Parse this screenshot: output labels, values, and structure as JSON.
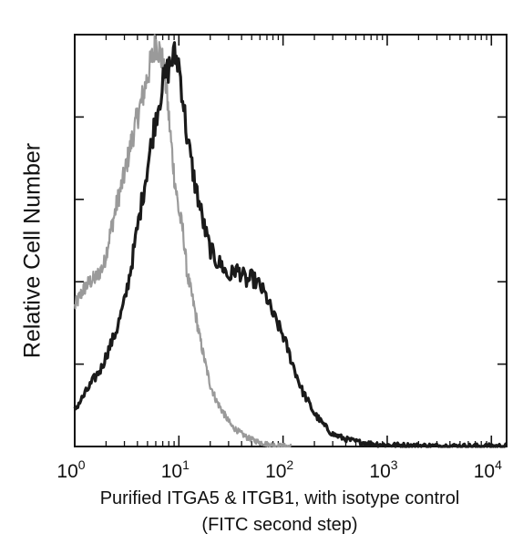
{
  "chart_data": {
    "type": "histogram",
    "x_scale": "log",
    "xlim": [
      1,
      14000
    ],
    "ylim": [
      0,
      100
    ],
    "grid": false,
    "legend": "none",
    "xlabel": [
      "Purified ITGA5 & ITGB1, with isotype control",
      "(FITC second step)"
    ],
    "ylabel": "Relative Cell Number",
    "x_ticks": [
      {
        "value": 1,
        "base": "10",
        "exp": "0"
      },
      {
        "value": 10,
        "base": "10",
        "exp": "1"
      },
      {
        "value": 100,
        "base": "10",
        "exp": "2"
      },
      {
        "value": 1000,
        "base": "10",
        "exp": "3"
      },
      {
        "value": 10000,
        "base": "10",
        "exp": "4"
      }
    ],
    "y_ticks": [
      20,
      40,
      60,
      80
    ],
    "series": [
      {
        "role": "isotype control",
        "color": "#9a9a9a",
        "x": [
          1,
          1.1,
          1.2,
          1.4,
          1.6,
          1.9,
          2.2,
          2.6,
          3.0,
          3.5,
          4.0,
          4.5,
          5.0,
          5.5,
          6.0,
          6.5,
          7.0,
          7.5,
          8.0,
          9.0,
          10,
          11,
          12,
          14,
          16,
          18,
          20,
          23,
          27,
          32,
          38,
          45,
          55,
          70,
          90,
          120
        ],
        "y": [
          34,
          36,
          38,
          40,
          41,
          44,
          52,
          60,
          66,
          74,
          80,
          85,
          90,
          94,
          98,
          96,
          93,
          88,
          80,
          66,
          57,
          52,
          42,
          34,
          26,
          20,
          15,
          11,
          8,
          5,
          3.5,
          2.2,
          1.3,
          0.6,
          0.2,
          0
        ]
      },
      {
        "role": "ITGA5 & ITGB1",
        "color": "#1a1a1a",
        "x": [
          1,
          1.2,
          1.5,
          1.8,
          2.0,
          2.5,
          3.0,
          3.5,
          4.0,
          5.0,
          6.0,
          7.0,
          8.0,
          9.0,
          10,
          11,
          12,
          14,
          16,
          18,
          20,
          23,
          26,
          30,
          35,
          40,
          45,
          50,
          60,
          70,
          80,
          100,
          120,
          150,
          200,
          250,
          300,
          400,
          500,
          700,
          1000,
          2000,
          5000,
          14000
        ],
        "y": [
          9,
          12,
          16,
          19,
          22,
          28,
          35,
          44,
          53,
          68,
          80,
          88,
          92,
          95,
          93,
          84,
          75,
          65,
          58,
          52,
          48,
          45,
          44,
          41,
          43,
          42,
          40,
          41,
          39,
          36,
          32,
          27,
          21,
          14,
          8,
          5,
          3,
          1.8,
          1.2,
          0.7,
          0.4,
          0.2,
          0.1,
          0.1
        ]
      }
    ]
  }
}
